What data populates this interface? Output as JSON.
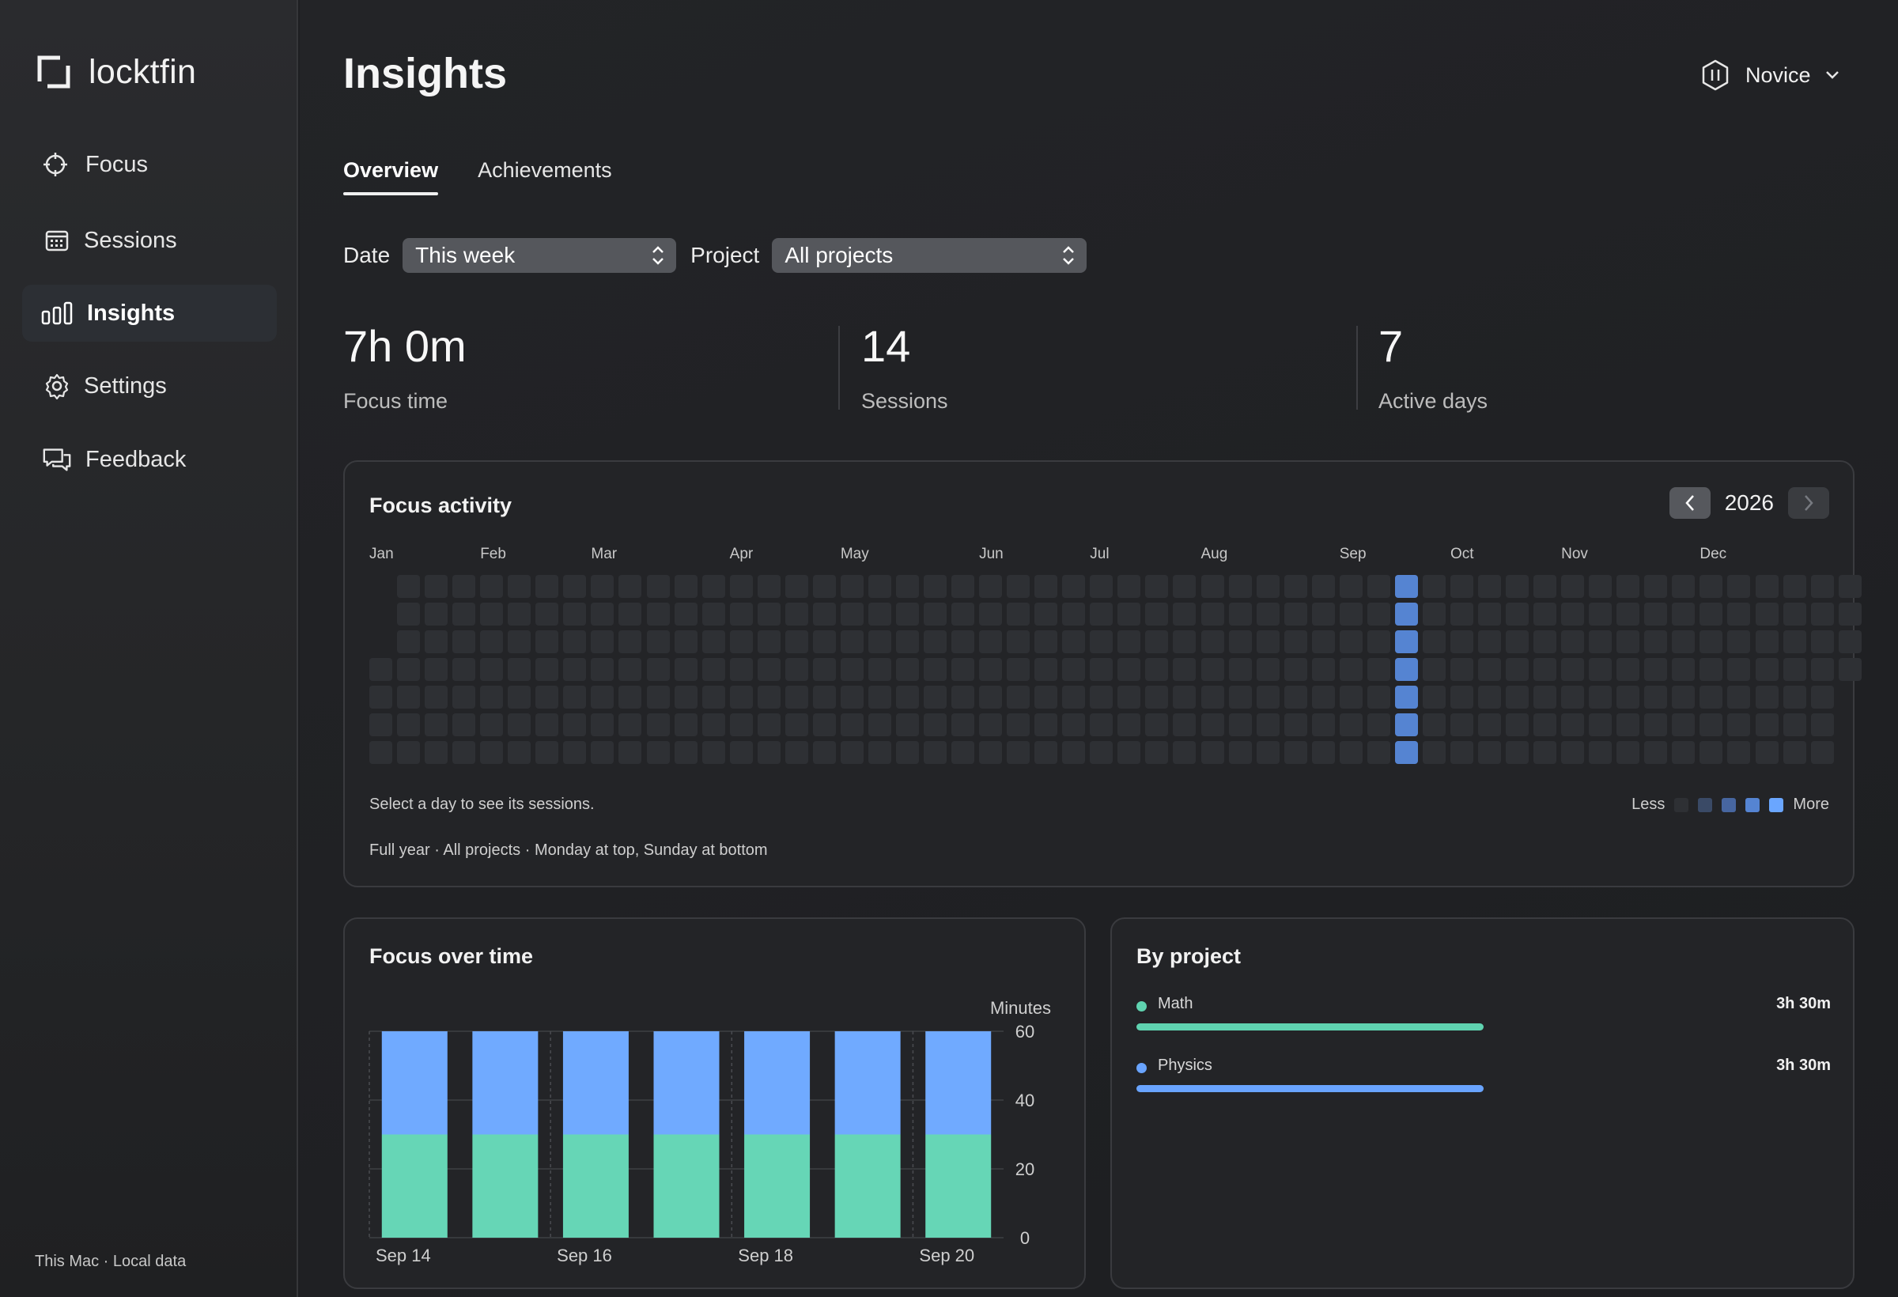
{
  "app": {
    "name": "locktfin"
  },
  "sidebar": {
    "items": [
      {
        "label": "Focus",
        "icon": "crosshair-icon",
        "active": false
      },
      {
        "label": "Sessions",
        "icon": "calendar-icon",
        "active": false
      },
      {
        "label": "Insights",
        "icon": "bar-chart-icon",
        "active": true
      },
      {
        "label": "Settings",
        "icon": "gear-icon",
        "active": false
      },
      {
        "label": "Feedback",
        "icon": "chat-bubbles-icon",
        "active": false
      }
    ],
    "footer": "This Mac · Local data"
  },
  "header": {
    "title": "Insights",
    "level_label": "Novice",
    "level_icon": "hexagon-pause-icon"
  },
  "tabs": [
    {
      "label": "Overview",
      "active": true
    },
    {
      "label": "Achievements",
      "active": false
    }
  ],
  "filters": {
    "date_label": "Date",
    "date_value": "This week",
    "project_label": "Project",
    "project_value": "All projects"
  },
  "stats": [
    {
      "value": "7h 0m",
      "label": "Focus time"
    },
    {
      "value": "14",
      "label": "Sessions"
    },
    {
      "value": "7",
      "label": "Active days"
    }
  ],
  "activity": {
    "title": "Focus activity",
    "year": "2026",
    "months": [
      "Jan",
      "Feb",
      "Mar",
      "Apr",
      "May",
      "Jun",
      "Jul",
      "Aug",
      "Sep",
      "Oct",
      "Nov",
      "Dec"
    ],
    "active_week_index": 37,
    "active_days_in_week": 7,
    "hint": "Select a day to see its sessions.",
    "note": "Full year · All projects · Monday at top, Sunday at bottom",
    "legend_less": "Less",
    "legend_more": "More",
    "legend_colors": [
      "#2e3034",
      "#3a4a66",
      "#4766a0",
      "#5584d2",
      "#6aa6ff"
    ],
    "active_color": "#5584d2"
  },
  "over_time": {
    "title": "Focus over time",
    "unit_label": "Minutes"
  },
  "by_project": {
    "title": "By project",
    "projects": [
      {
        "name": "Math",
        "time": "3h 30m",
        "color": "#5fd3b0",
        "share": 0.5
      },
      {
        "name": "Physics",
        "time": "3h 30m",
        "color": "#69a4ff",
        "share": 0.5
      }
    ]
  },
  "chart_data": {
    "type": "bar",
    "stacked": true,
    "categories": [
      "Sep 14",
      "Sep 15",
      "Sep 16",
      "Sep 17",
      "Sep 18",
      "Sep 19",
      "Sep 20"
    ],
    "x_tick_labels": [
      "Sep 14",
      "Sep 16",
      "Sep 18",
      "Sep 20"
    ],
    "series": [
      {
        "name": "Math",
        "color": "#66d6b6",
        "values": [
          30,
          30,
          30,
          30,
          30,
          30,
          30
        ]
      },
      {
        "name": "Physics",
        "color": "#70aaff",
        "values": [
          30,
          30,
          30,
          30,
          30,
          30,
          30
        ]
      }
    ],
    "ylabel": "Minutes",
    "ylim": [
      0,
      60
    ],
    "yticks": [
      0,
      20,
      40,
      60
    ],
    "grid": true,
    "y_axis_side": "right"
  }
}
